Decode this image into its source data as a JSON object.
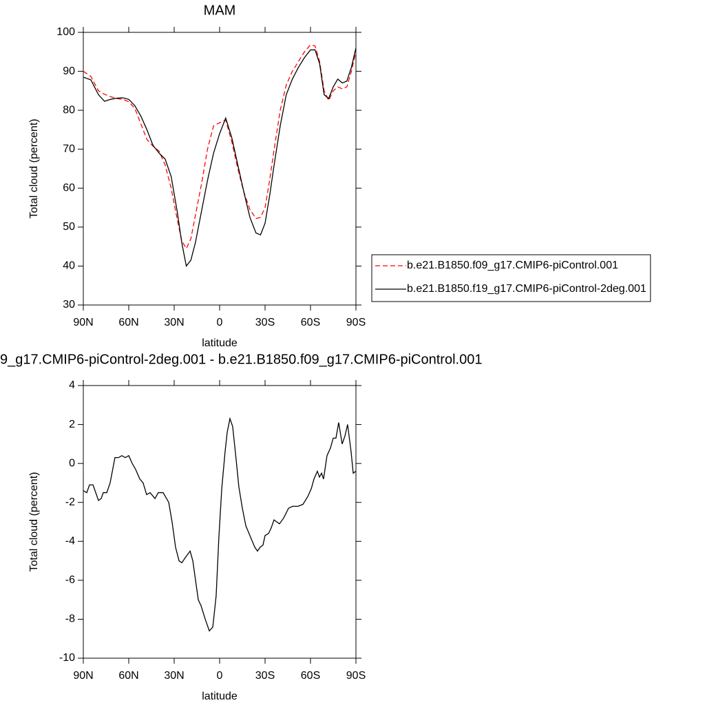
{
  "chart_data": [
    {
      "type": "line",
      "title": "MAM",
      "xlabel": "latitude",
      "ylabel": "Total cloud (percent)",
      "x": [
        90,
        85,
        80,
        76,
        72,
        68,
        64,
        60,
        56,
        52,
        48,
        44,
        40,
        36,
        32,
        28,
        25,
        22,
        19,
        16,
        12,
        8,
        4,
        0,
        -4,
        -8,
        -12,
        -16,
        -20,
        -24,
        -27,
        -30,
        -33,
        -36,
        -40,
        -44,
        -48,
        -52,
        -56,
        -60,
        -63,
        -66,
        -69,
        -72,
        -75,
        -78,
        -81,
        -84,
        -87,
        -90
      ],
      "xlim": [
        90,
        -90
      ],
      "xticks": [
        {
          "value": 90,
          "label": "90N"
        },
        {
          "value": 60,
          "label": "60N"
        },
        {
          "value": 30,
          "label": "30N"
        },
        0,
        {
          "value": -30,
          "label": "30S"
        },
        {
          "value": -60,
          "label": "60S"
        },
        {
          "value": -90,
          "label": "90S"
        }
      ],
      "ylim": [
        30,
        100
      ],
      "yticks": [
        30,
        40,
        50,
        60,
        70,
        80,
        90,
        100
      ],
      "legend": "right",
      "series": [
        {
          "name": "b.e21.B1850.f09_g17.CMIP6-piControl.001",
          "color": "#ff0000",
          "dash": "dashed",
          "values": [
            90,
            88.7,
            85,
            84.1,
            83.5,
            83,
            82.8,
            82.2,
            80.5,
            76.5,
            72.5,
            70.8,
            69.5,
            66,
            60,
            52,
            46.5,
            44.5,
            47,
            53,
            61,
            70,
            76,
            76.8,
            77.5,
            72,
            65,
            59,
            54.5,
            52.2,
            52.5,
            55,
            62,
            70,
            80,
            86.5,
            90,
            92.5,
            95,
            96.8,
            96.5,
            92.5,
            85,
            82.5,
            85,
            86,
            85.5,
            86,
            90,
            95
          ]
        },
        {
          "name": "b.e21.B1850.f19_g17.CMIP6-piControl-2deg.001",
          "color": "#000000",
          "dash": "solid",
          "values": [
            88.5,
            87.8,
            84,
            82.3,
            82.8,
            83.1,
            83.2,
            82.8,
            81.2,
            78.5,
            75,
            71,
            69,
            67.5,
            63,
            54,
            46,
            40,
            41.5,
            46,
            54,
            62,
            69,
            74,
            78,
            73,
            66,
            59,
            52.5,
            48.5,
            48,
            51,
            58,
            66,
            76,
            84,
            88,
            91,
            93.5,
            95.5,
            95.5,
            92,
            84,
            83,
            86,
            88,
            87,
            87.5,
            91,
            96
          ]
        }
      ]
    },
    {
      "type": "line",
      "title": "9_g17.CMIP6-piControl-2deg.001 - b.e21.B1850.f09_g17.CMIP6-piControl.001",
      "xlabel": "latitude",
      "ylabel": "Total cloud (percent)",
      "x": [
        90,
        87.7,
        85.9,
        83.6,
        80,
        78.2,
        76.8,
        74.5,
        72.3,
        69.1,
        66.8,
        64.5,
        62.3,
        60,
        57.7,
        55.5,
        52.7,
        50.5,
        48.2,
        45.9,
        42.7,
        40.5,
        37.3,
        33.6,
        31.4,
        29.1,
        26.8,
        25,
        22.3,
        19.5,
        17.7,
        14.1,
        12.3,
        9.5,
        6.8,
        4.5,
        2.3,
        0.5,
        -1.4,
        -3.6,
        -5,
        -6.8,
        -8.6,
        -10.5,
        -12.7,
        -15,
        -17.3,
        -20.5,
        -23.2,
        -25,
        -26.8,
        -28.6,
        -30,
        -32.3,
        -34.1,
        -35.9,
        -37.7,
        -39.5,
        -42.3,
        -45.5,
        -48.2,
        -51.8,
        -55,
        -58.2,
        -60.5,
        -62.3,
        -64.5,
        -65.9,
        -67.3,
        -68.6,
        -70.9,
        -73.2,
        -75,
        -76.8,
        -78.6,
        -80.9,
        -82.7,
        -84.5,
        -86.8,
        -88.2,
        -90
      ],
      "values": [
        -1.4,
        -1.5,
        -1.1,
        -1.1,
        -1.9,
        -1.8,
        -1.5,
        -1.5,
        -1.0,
        0.3,
        0.3,
        0.4,
        0.3,
        0.4,
        0.0,
        -0.3,
        -0.8,
        -1.0,
        -1.6,
        -1.5,
        -1.8,
        -1.5,
        -1.5,
        -2.0,
        -3.0,
        -4.3,
        -5.0,
        -5.1,
        -4.8,
        -4.5,
        -5.0,
        -7.0,
        -7.3,
        -8.0,
        -8.6,
        -8.4,
        -6.8,
        -3.8,
        -1.3,
        0.6,
        1.6,
        2.3,
        1.9,
        0.5,
        -1.2,
        -2.3,
        -3.2,
        -3.8,
        -4.3,
        -4.5,
        -4.3,
        -4.2,
        -3.7,
        -3.6,
        -3.3,
        -2.9,
        -3.0,
        -3.1,
        -2.8,
        -2.3,
        -2.2,
        -2.2,
        -2.1,
        -1.7,
        -1.3,
        -0.8,
        -0.4,
        -0.7,
        -0.5,
        -0.8,
        0.4,
        0.8,
        1.3,
        1.3,
        2.1,
        1.0,
        1.4,
        2.0,
        0.6,
        -0.5,
        -0.4
      ],
      "color": "#000000",
      "xlim": [
        90,
        -90
      ],
      "xticks": [
        {
          "value": 90,
          "label": "90N"
        },
        {
          "value": 60,
          "label": "60N"
        },
        {
          "value": 30,
          "label": "30N"
        },
        0,
        {
          "value": -30,
          "label": "30S"
        },
        {
          "value": -60,
          "label": "60S"
        },
        {
          "value": -90,
          "label": "90S"
        }
      ],
      "ylim": [
        -10,
        4
      ],
      "yticks": [
        -10,
        -8,
        -6,
        -4,
        -2,
        0,
        2,
        4
      ]
    }
  ]
}
